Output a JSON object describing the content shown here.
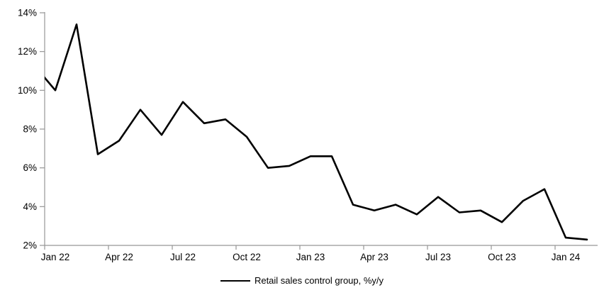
{
  "chart_data": {
    "type": "line",
    "title": "",
    "categories": [
      "Dec 21",
      "Jan 22",
      "Feb 22",
      "Mar 22",
      "Apr 22",
      "May 22",
      "Jun 22",
      "Jul 22",
      "Aug 22",
      "Sep 22",
      "Oct 22",
      "Nov 22",
      "Dec 22",
      "Jan 23",
      "Feb 23",
      "Mar 23",
      "Apr 23",
      "May 23",
      "Jun 23",
      "Jul 23",
      "Aug 23",
      "Sep 23",
      "Oct 23",
      "Nov 23",
      "Dec 23",
      "Jan 24",
      "Feb 24"
    ],
    "series": [
      {
        "name": "Retail sales control group, %y/y",
        "color": "#000000",
        "values": [
          11.3,
          10.0,
          13.4,
          6.7,
          7.4,
          9.0,
          7.7,
          9.4,
          8.3,
          8.5,
          7.6,
          6.0,
          6.1,
          6.6,
          6.6,
          4.1,
          3.8,
          4.1,
          3.6,
          4.5,
          3.7,
          3.8,
          3.2,
          4.3,
          4.9,
          2.4,
          2.3
        ]
      }
    ],
    "x_tick_labels": [
      "Jan 22",
      "Apr 22",
      "Jul 22",
      "Oct 22",
      "Jan 23",
      "Apr 23",
      "Jul 23",
      "Oct 23",
      "Jan 24"
    ],
    "x_tick_interval_months": 3,
    "y_tick_labels": [
      "2%",
      "4%",
      "6%",
      "8%",
      "10%",
      "12%",
      "14%"
    ],
    "ylim": [
      2,
      14
    ],
    "y_tick_step": 2,
    "xlabel": "",
    "ylabel": "",
    "grid": false,
    "legend_position": "bottom",
    "axis_color": "#969696",
    "text_color": "#000000",
    "background_color": "#ffffff"
  }
}
